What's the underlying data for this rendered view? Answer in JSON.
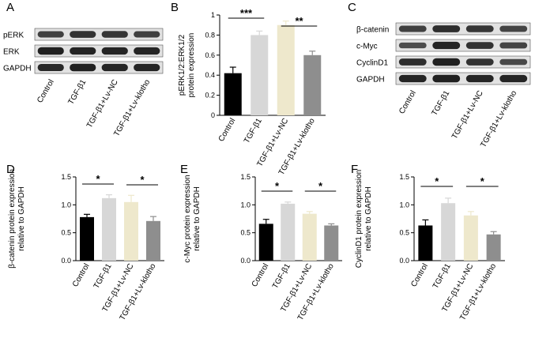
{
  "panel_labels": [
    "A",
    "B",
    "C",
    "D",
    "E",
    "F"
  ],
  "colors": {
    "bar": [
      "#000000",
      "#d7d7d7",
      "#eee8cc",
      "#8e8e8e"
    ],
    "band": "#1c1c1c",
    "blot_bg": "#e2e2e2"
  },
  "groups": [
    "Control",
    "TGF-β1",
    "TGF-β1+Lv-NC",
    "TGF-β1+Lv-klotho"
  ],
  "blot_a": {
    "rows": [
      "pERK",
      "ERK",
      "GAPDH"
    ],
    "lanes": [
      "Control",
      "TGF-β1",
      "TGF-β1+Lv-NC",
      "TGF-β1+Lv-klotho"
    ]
  },
  "blot_c": {
    "rows": [
      "β-catenin",
      "c-Myc",
      "CyclinD1",
      "GAPDH"
    ],
    "lanes": [
      "Control",
      "TGF-β1",
      "TGF-β1+Lv-NC",
      "TGF-β1+Lv-klotho"
    ]
  },
  "chart_data": [
    {
      "panel": "B",
      "type": "bar",
      "categories": [
        "Control",
        "TGF-β1",
        "TGF-β1+Lv-NC",
        "TGF-β1+Lv-klotho"
      ],
      "values": [
        0.42,
        0.8,
        0.9,
        0.6
      ],
      "errors": [
        0.06,
        0.04,
        0.04,
        0.04
      ],
      "ylabel": "pERK1/2:ERK1/2 protein expression",
      "ylabel_lines": [
        "pERK1/2:ERK1/2",
        "protein expression"
      ],
      "ylim": [
        0,
        1
      ],
      "yticks": [
        "0",
        "0.2",
        "0.4",
        "0.6",
        "0.8",
        "1"
      ],
      "significance": [
        {
          "from": 0,
          "to": 1,
          "label": "***"
        },
        {
          "from": 2,
          "to": 3,
          "label": "**"
        }
      ]
    },
    {
      "panel": "D",
      "type": "bar",
      "categories": [
        "Control",
        "TGF-β1",
        "TGF-β1+Lv-NC",
        "TGF-β1+Lv-klotho"
      ],
      "values": [
        0.78,
        1.12,
        1.05,
        0.71
      ],
      "errors": [
        0.05,
        0.06,
        0.12,
        0.08
      ],
      "ylabel": "β-catenin protein expression relative to GAPDH",
      "ylabel_lines": [
        "β-catenin protein expression",
        "relative to GAPDH"
      ],
      "ylim": [
        0,
        1.5
      ],
      "yticks": [
        "0.0",
        "0.5",
        "1.0",
        "1.5"
      ],
      "significance": [
        {
          "from": 0,
          "to": 1,
          "label": "*"
        },
        {
          "from": 2,
          "to": 3,
          "label": "*"
        }
      ]
    },
    {
      "panel": "E",
      "type": "bar",
      "categories": [
        "Control",
        "TGF-β1",
        "TGF-β1+Lv-NC",
        "TGF-β1+Lv-klotho"
      ],
      "values": [
        0.66,
        1.02,
        0.84,
        0.63
      ],
      "errors": [
        0.08,
        0.03,
        0.04,
        0.03
      ],
      "ylabel": "c-Myc protein expression relative to GAPDH",
      "ylabel_lines": [
        "c-Myc protein expression",
        "relative to GAPDH"
      ],
      "ylim": [
        0,
        1.5
      ],
      "yticks": [
        "0.0",
        "0.5",
        "1.0",
        "1.5"
      ],
      "significance": [
        {
          "from": 0,
          "to": 1,
          "label": "*"
        },
        {
          "from": 2,
          "to": 3,
          "label": "*"
        }
      ]
    },
    {
      "panel": "F",
      "type": "bar",
      "categories": [
        "Control",
        "TGF-β1",
        "TGF-β1+Lv-NC",
        "TGF-β1+Lv-klotho"
      ],
      "values": [
        0.63,
        1.03,
        0.81,
        0.47
      ],
      "errors": [
        0.1,
        0.09,
        0.07,
        0.05
      ],
      "ylabel": "CyclinD1 protein expression relative to GAPDH",
      "ylabel_lines": [
        "CyclinD1 protein expression",
        "relative to GAPDH"
      ],
      "ylim": [
        0,
        1.5
      ],
      "yticks": [
        "0.0",
        "0.5",
        "1.0",
        "1.5"
      ],
      "significance": [
        {
          "from": 0,
          "to": 1,
          "label": "*"
        },
        {
          "from": 2,
          "to": 3,
          "label": "*"
        }
      ]
    }
  ]
}
